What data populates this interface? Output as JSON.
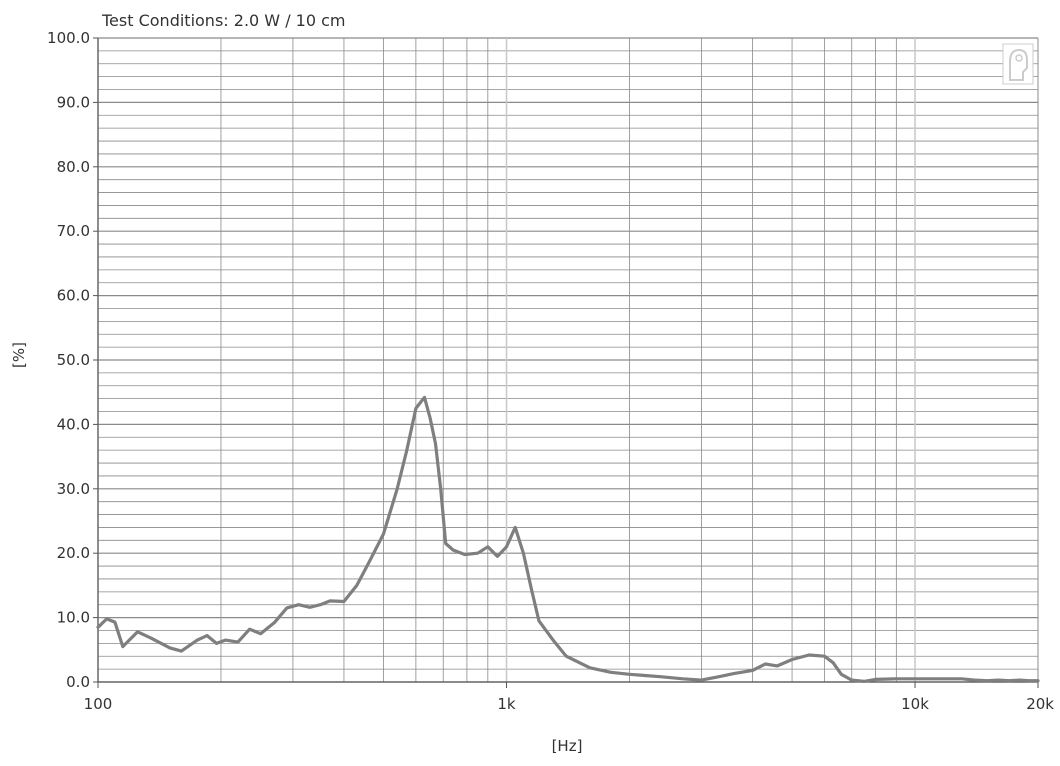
{
  "chart_data": {
    "type": "line",
    "title": "Test Conditions: 2.0 W / 10 cm",
    "xlabel": "[Hz]",
    "ylabel": "[%]",
    "xscale": "log",
    "xlim": [
      100,
      20000
    ],
    "ylim": [
      0,
      100
    ],
    "x_ticks": [
      {
        "value": 100,
        "label": "100"
      },
      {
        "value": 1000,
        "label": "1k"
      },
      {
        "value": 10000,
        "label": "10k"
      },
      {
        "value": 20000,
        "label": "20k"
      }
    ],
    "y_ticks": [
      {
        "value": 0,
        "label": "0.0"
      },
      {
        "value": 10,
        "label": "10.0"
      },
      {
        "value": 20,
        "label": "20.0"
      },
      {
        "value": 30,
        "label": "30.0"
      },
      {
        "value": 40,
        "label": "40.0"
      },
      {
        "value": 50,
        "label": "50.0"
      },
      {
        "value": 60,
        "label": "60.0"
      },
      {
        "value": 70,
        "label": "70.0"
      },
      {
        "value": 80,
        "label": "80.0"
      },
      {
        "value": 90,
        "label": "90.0"
      },
      {
        "value": 100,
        "label": "100.0"
      }
    ],
    "grid": true,
    "line_color": "#7f7f7f",
    "grid_color": "#8a8a8a",
    "series": [
      {
        "x": [
          100,
          105,
          110,
          115,
          125,
          135,
          150,
          160,
          175,
          185,
          195,
          205,
          220,
          235,
          250,
          270,
          290,
          310,
          330,
          350,
          370,
          400,
          430,
          460,
          500,
          540,
          570,
          600,
          630,
          650,
          670,
          690,
          710,
          740,
          790,
          850,
          900,
          950,
          1000,
          1050,
          1100,
          1150,
          1200,
          1300,
          1400,
          1600,
          1800,
          2000,
          2200,
          2400,
          2700,
          3000,
          3300,
          3600,
          4000,
          4300,
          4600,
          5000,
          5500,
          6000,
          6300,
          6600,
          7000,
          7500,
          8000,
          9000,
          10000,
          11000,
          12000,
          13000,
          14000,
          15000,
          16000,
          17000,
          18000,
          19000,
          20000
        ],
        "y": [
          8.5,
          9.8,
          9.3,
          5.5,
          7.8,
          6.8,
          5.3,
          4.8,
          6.5,
          7.2,
          6.0,
          6.5,
          6.2,
          8.2,
          7.5,
          9.2,
          11.5,
          12.0,
          11.6,
          12.0,
          12.6,
          12.5,
          15.0,
          18.5,
          23.0,
          30.0,
          36.0,
          42.5,
          44.2,
          41.0,
          37.0,
          30.0,
          21.5,
          20.5,
          19.8,
          20.0,
          21.0,
          19.5,
          21.0,
          24.0,
          20.0,
          14.5,
          9.5,
          6.5,
          4.0,
          2.2,
          1.5,
          1.2,
          1.0,
          0.8,
          0.5,
          0.3,
          0.8,
          1.3,
          1.8,
          2.8,
          2.5,
          3.5,
          4.2,
          4.0,
          3.0,
          1.2,
          0.3,
          0.1,
          0.4,
          0.5,
          0.5,
          0.5,
          0.5,
          0.5,
          0.3,
          0.2,
          0.3,
          0.2,
          0.3,
          0.2,
          0.2
        ]
      }
    ]
  }
}
